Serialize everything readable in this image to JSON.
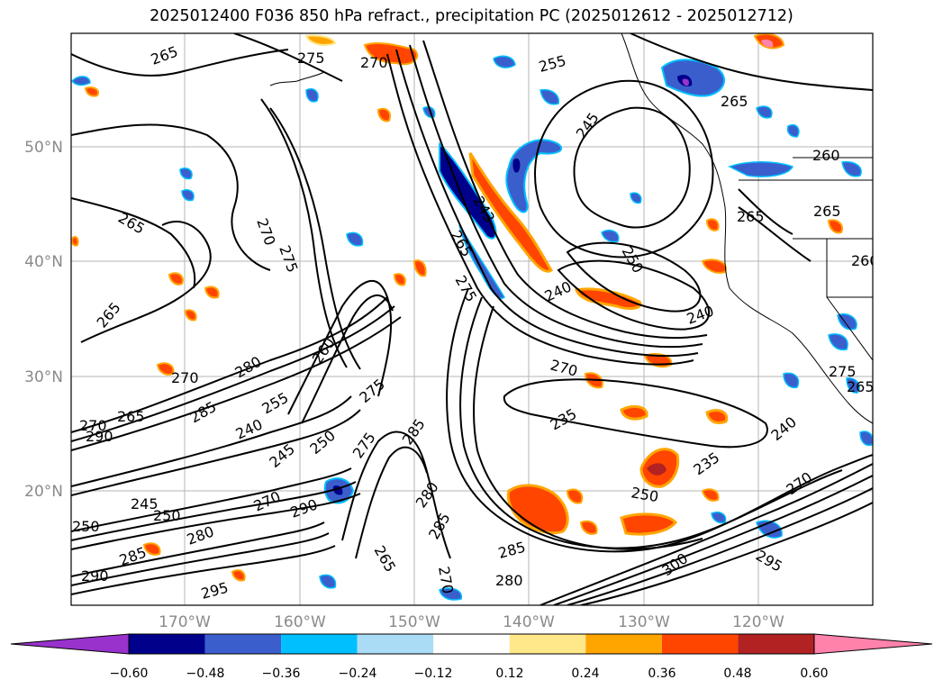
{
  "title": "2025012400 F036 850 hPa refract., precipitation PC (2025012612 - 2025012712)",
  "lat_labels": [
    "50°N",
    "40°N",
    "30°N",
    "20°N"
  ],
  "lon_labels": [
    "170°W",
    "160°W",
    "150°W",
    "140°W",
    "130°W",
    "120°W"
  ],
  "colorbar": {
    "ticks": [
      "−0.60",
      "−0.48",
      "−0.36",
      "−0.24",
      "−0.12",
      "0.12",
      "0.24",
      "0.36",
      "0.48",
      "0.60"
    ],
    "colors": [
      "#9932cc",
      "#00008b",
      "#3a5fcd",
      "#00bfff",
      "#aadcf5",
      "#ffffff",
      "#ffe88a",
      "#ffa500",
      "#ff4500",
      "#b22222",
      "#ff82ab"
    ]
  },
  "contour_labels": [
    "265",
    "270",
    "275",
    "255",
    "245",
    "265",
    "265",
    "260",
    "265",
    "260",
    "265",
    "270",
    "275",
    "243",
    "265",
    "275",
    "250",
    "240",
    "240",
    "265",
    "270",
    "280",
    "260",
    "275",
    "270",
    "270",
    "265",
    "290",
    "285",
    "240",
    "255",
    "250",
    "245",
    "275",
    "285",
    "235",
    "240",
    "235",
    "250",
    "285",
    "280",
    "290",
    "270",
    "250",
    "250",
    "245",
    "280",
    "285",
    "290",
    "295",
    "265",
    "285",
    "270",
    "280",
    "300",
    "295",
    "270",
    "275",
    "265"
  ]
}
